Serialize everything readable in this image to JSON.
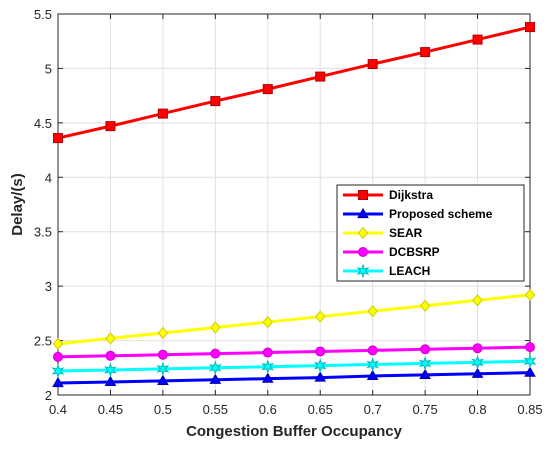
{
  "chart_data": {
    "type": "line",
    "xlabel": "Congestion Buffer Occupancy",
    "ylabel": "Delay/(s)",
    "xlim": [
      0.4,
      0.85
    ],
    "ylim": [
      2,
      5.5
    ],
    "x_ticks": [
      0.4,
      0.45,
      0.5,
      0.55,
      0.6,
      0.65,
      0.7,
      0.75,
      0.8,
      0.85
    ],
    "x_tick_labels": [
      "0.4",
      "0.45",
      "0.5",
      "0.55",
      "0.6",
      "0.65",
      "0.7",
      "0.75",
      "0.8",
      "0.85"
    ],
    "y_ticks": [
      2,
      2.5,
      3,
      3.5,
      4,
      4.5,
      5,
      5.5
    ],
    "y_tick_labels": [
      "2",
      "2.5",
      "3",
      "3.5",
      "4",
      "4.5",
      "5",
      "5.5"
    ],
    "grid": true,
    "legend_position": "right",
    "x": [
      0.4,
      0.45,
      0.5,
      0.55,
      0.6,
      0.65,
      0.7,
      0.75,
      0.8,
      0.85
    ],
    "series": [
      {
        "name": "Dijkstra",
        "color": "#ff0000",
        "marker": "square",
        "values": [
          4.36,
          4.47,
          4.585,
          4.7,
          4.81,
          4.925,
          5.04,
          5.15,
          5.265,
          5.38
        ]
      },
      {
        "name": "Proposed scheme",
        "color": "#0000ff",
        "marker": "triangle",
        "values": [
          2.11,
          2.12,
          2.13,
          2.14,
          2.15,
          2.16,
          2.175,
          2.185,
          2.195,
          2.205
        ]
      },
      {
        "name": "SEAR",
        "color": "#ffff00",
        "marker": "diamond",
        "values": [
          2.47,
          2.52,
          2.57,
          2.62,
          2.67,
          2.72,
          2.77,
          2.82,
          2.87,
          2.92
        ]
      },
      {
        "name": "DCBSRP",
        "color": "#ff00ff",
        "marker": "circle",
        "values": [
          2.35,
          2.36,
          2.37,
          2.38,
          2.39,
          2.4,
          2.41,
          2.42,
          2.43,
          2.44
        ]
      },
      {
        "name": "LEACH",
        "color": "#00ffff",
        "marker": "star",
        "values": [
          2.22,
          2.23,
          2.24,
          2.25,
          2.26,
          2.27,
          2.28,
          2.29,
          2.3,
          2.31
        ]
      }
    ]
  }
}
